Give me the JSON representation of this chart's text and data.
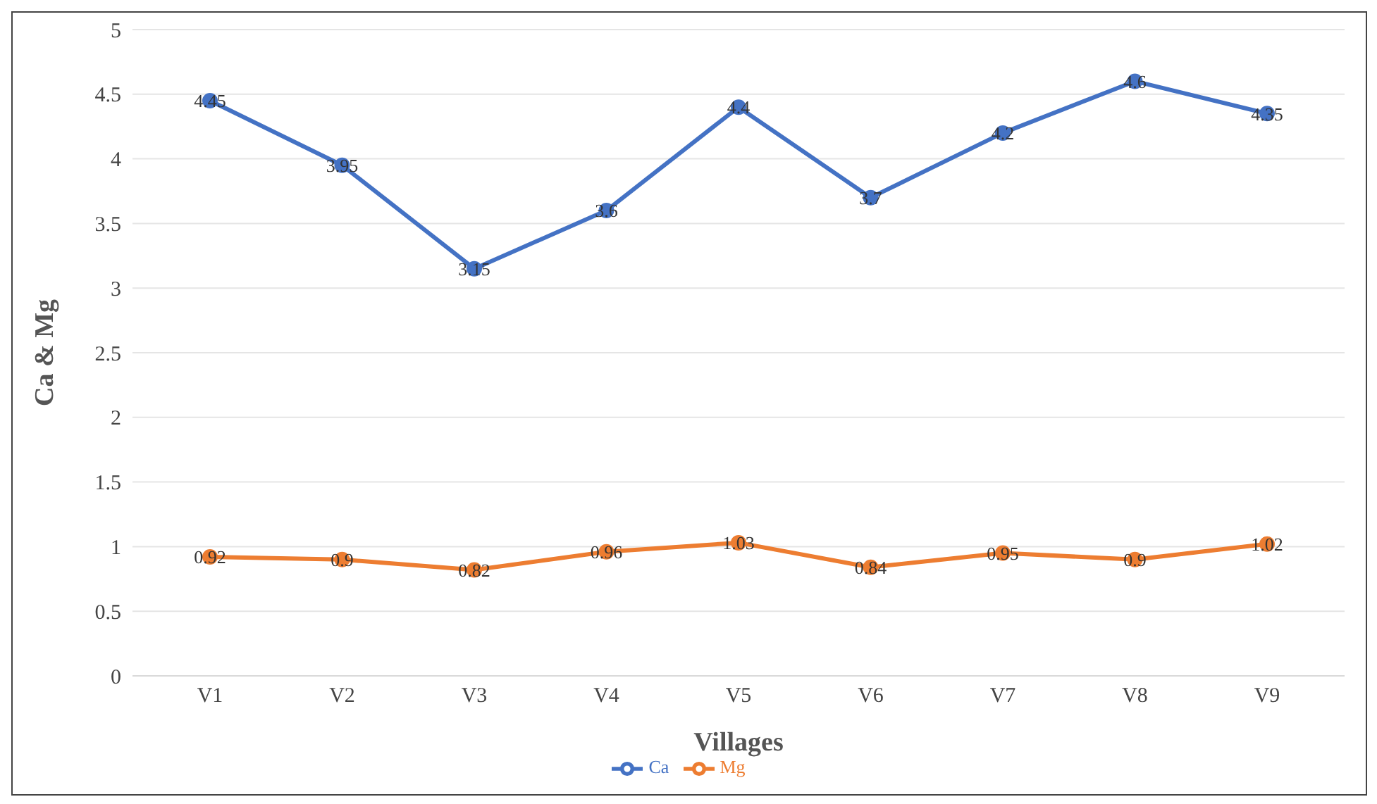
{
  "chart_data": {
    "type": "line",
    "xlabel": "Villages",
    "ylabel": "Ca & Mg",
    "categories": [
      "V1",
      "V2",
      "V3",
      "V4",
      "V5",
      "V6",
      "V7",
      "V8",
      "V9"
    ],
    "series": [
      {
        "name": "Ca",
        "color": "#4472c4",
        "values": [
          4.45,
          3.95,
          3.15,
          3.6,
          4.4,
          3.7,
          4.2,
          4.6,
          4.35
        ]
      },
      {
        "name": "Mg",
        "color": "#ed7d31",
        "values": [
          0.92,
          0.9,
          0.82,
          0.96,
          1.03,
          0.84,
          0.95,
          0.9,
          1.02
        ]
      }
    ],
    "ylim": [
      0,
      5
    ],
    "yticks": [
      0,
      0.5,
      1,
      1.5,
      2,
      2.5,
      3,
      3.5,
      4,
      4.5,
      5
    ],
    "grid": "y",
    "legend": "bottom",
    "marker": "circle",
    "line_style": "solid",
    "data_labels": true
  }
}
